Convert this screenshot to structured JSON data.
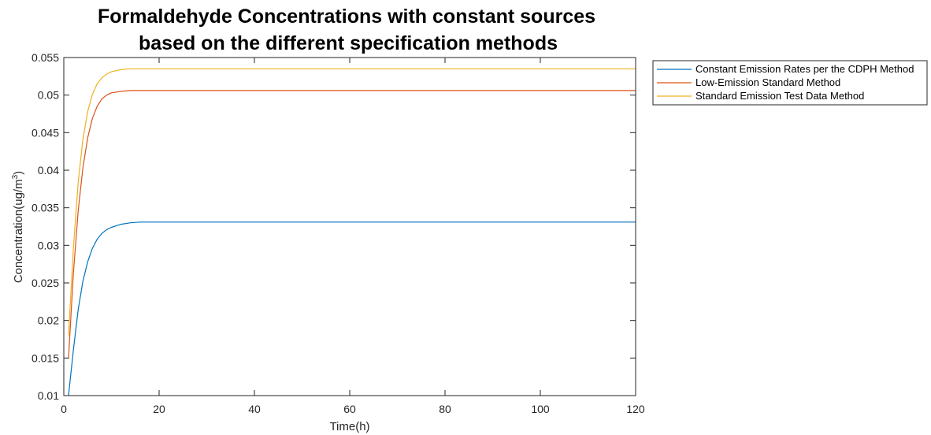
{
  "chart_data": {
    "type": "line",
    "title": [
      "Formaldehyde Concentrations with constant sources",
      "based on the different specification methods"
    ],
    "xlabel": "Time(h)",
    "ylabel": "Concentration(ug/m",
    "ylabel_superscript": "3",
    "ylabel_suffix": ")",
    "xlim": [
      0,
      120
    ],
    "ylim": [
      0.01,
      0.055
    ],
    "x_ticks": [
      0,
      20,
      40,
      60,
      80,
      100,
      120
    ],
    "x_tick_labels": [
      "0",
      "20",
      "40",
      "60",
      "80",
      "100",
      "120"
    ],
    "y_ticks": [
      0.01,
      0.015,
      0.02,
      0.025,
      0.03,
      0.035,
      0.04,
      0.045,
      0.05,
      0.055
    ],
    "y_tick_labels": [
      "0.01",
      "0.015",
      "0.02",
      "0.025",
      "0.03",
      "0.035",
      "0.04",
      "0.045",
      "0.05",
      "0.055"
    ],
    "grid": false,
    "legend_position": "outside-top-right",
    "x": [
      1,
      2,
      3,
      4,
      5,
      6,
      7,
      8,
      9,
      10,
      12,
      14,
      16,
      18,
      20,
      25,
      30,
      40,
      60,
      80,
      100,
      120
    ],
    "series": [
      {
        "name": "Constant Emission Rates per the CDPH Method",
        "color": "#0072BD",
        "values": [
          0.01,
          0.016,
          0.0214,
          0.0252,
          0.0278,
          0.0296,
          0.0308,
          0.0316,
          0.0321,
          0.0324,
          0.0328,
          0.033,
          0.0331,
          0.0331,
          0.0331,
          0.0331,
          0.0331,
          0.0331,
          0.0331,
          0.0331,
          0.0331,
          0.0331
        ]
      },
      {
        "name": "Low-Emission Standard Method",
        "color": "#D95319",
        "values": [
          0.015,
          0.0262,
          0.0345,
          0.0403,
          0.0443,
          0.0469,
          0.0485,
          0.0495,
          0.05,
          0.0503,
          0.0505,
          0.0506,
          0.0506,
          0.0506,
          0.0506,
          0.0506,
          0.0506,
          0.0506,
          0.0506,
          0.0506,
          0.0506,
          0.0506
        ]
      },
      {
        "name": "Standard Emission Test Data Method",
        "color": "#EDB120",
        "values": [
          0.018,
          0.0295,
          0.0383,
          0.0441,
          0.0478,
          0.0501,
          0.0515,
          0.0523,
          0.0528,
          0.0531,
          0.0534,
          0.0535,
          0.0535,
          0.0535,
          0.0535,
          0.0535,
          0.0535,
          0.0535,
          0.0535,
          0.0535,
          0.0535,
          0.0535
        ]
      }
    ]
  }
}
